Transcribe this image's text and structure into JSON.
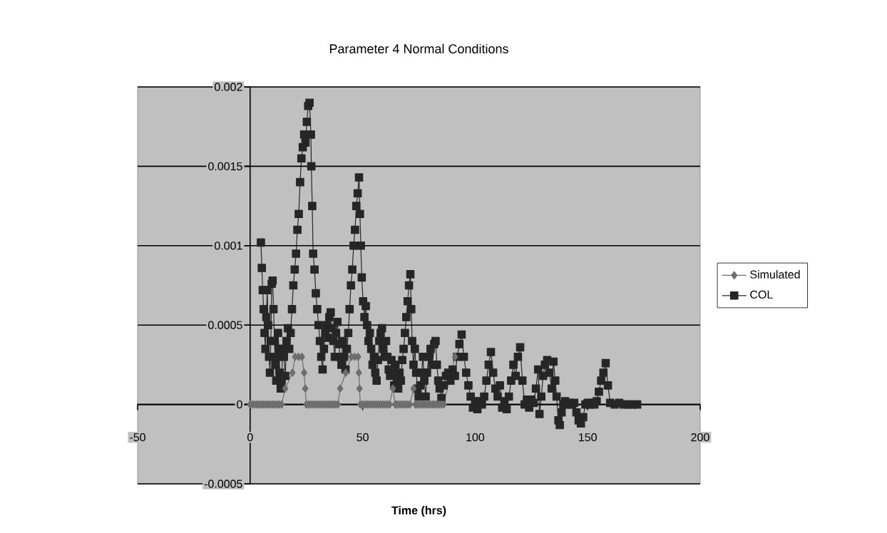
{
  "chart_data": {
    "type": "line",
    "title": "Parameter 4 Normal Conditions",
    "xlabel": "Time (hrs)",
    "xlim": [
      -50,
      200
    ],
    "xticks": [
      -50,
      0,
      50,
      100,
      150,
      200
    ],
    "ylim": [
      -0.0005,
      0.002
    ],
    "yticks": [
      -0.0005,
      0,
      0.0005,
      0.001,
      0.0015,
      0.002
    ],
    "grid": "y",
    "legend": "right",
    "line_style": "solid",
    "series": [
      {
        "name": "Simulated",
        "color": "#6e6e6e",
        "marker": "diamond",
        "x": [
          0,
          1,
          2,
          3,
          4,
          5,
          6,
          7,
          8,
          9,
          10,
          11,
          12,
          13,
          14,
          15.6,
          18.8,
          20,
          21.5,
          23,
          24,
          24.5,
          25,
          26,
          27,
          28,
          29,
          30,
          31,
          32,
          33,
          34,
          35,
          36,
          37,
          38,
          39,
          40,
          42.5,
          45,
          46.5,
          48,
          48.3,
          48.6,
          49,
          50,
          51,
          52,
          53,
          54,
          55,
          56,
          57,
          58,
          59,
          60,
          61,
          62,
          63.4,
          64.5,
          65,
          66,
          67,
          68,
          69,
          70,
          71,
          72.6,
          73.5,
          74,
          75,
          76,
          77,
          78,
          79,
          80,
          81,
          82,
          83,
          84,
          85,
          86,
          91
        ],
        "values": [
          0,
          0,
          0,
          0,
          0,
          0,
          0,
          0,
          0,
          0,
          0,
          0,
          0,
          0,
          0,
          0.0001,
          0.0002,
          0.0003,
          0.0003,
          0.0003,
          0.0002,
          0.0001,
          0,
          0,
          0,
          0,
          0,
          0,
          0,
          0,
          0,
          0,
          0,
          0,
          0,
          0,
          0,
          0.0001,
          0.0002,
          0.0003,
          0.0003,
          0.0003,
          0.0002,
          0.0001,
          0,
          0,
          0,
          0,
          0,
          0,
          0,
          0,
          0,
          0,
          0,
          0,
          0,
          0,
          0.0001,
          0,
          0,
          0,
          0,
          0,
          0,
          0,
          0,
          0.0001,
          0,
          0,
          0,
          0,
          0,
          0,
          0,
          0,
          0,
          0,
          0,
          0,
          0,
          0,
          0.0003
        ]
      },
      {
        "name": "COL",
        "color": "#262626",
        "marker": "square",
        "x": [
          4.8,
          5.2,
          5.6,
          6,
          6.4,
          6.8,
          7.2,
          7.6,
          8,
          8.4,
          8.8,
          9.2,
          9.6,
          10,
          10.4,
          10.8,
          11.2,
          11.6,
          12,
          12.4,
          12.8,
          13.2,
          13.6,
          14,
          14.4,
          15,
          15.6,
          16.2,
          16.8,
          17.4,
          18,
          18.6,
          19.2,
          19.8,
          20.4,
          21,
          21.6,
          22.2,
          22.8,
          23.4,
          24,
          24.6,
          25.2,
          25.8,
          26.4,
          27,
          27.2,
          27.6,
          28,
          28.6,
          29.2,
          29.8,
          30.4,
          31,
          31.6,
          32.2,
          32.8,
          33.4,
          34,
          34.6,
          35.2,
          35.8,
          36.4,
          37,
          37.6,
          38.2,
          38.8,
          39.4,
          40,
          40.6,
          41.2,
          41.8,
          42.4,
          43,
          43.6,
          44.2,
          44.8,
          45.4,
          46,
          46.6,
          47.2,
          47.8,
          48.4,
          48.8,
          49.2,
          49.6,
          50.2,
          50.8,
          51.4,
          52,
          52.6,
          53.2,
          53.8,
          54.4,
          55,
          55.6,
          56.2,
          56.8,
          57.4,
          58,
          58.6,
          59.2,
          59.8,
          60.4,
          61,
          61.6,
          62.2,
          62.8,
          63.4,
          64,
          64.6,
          65.2,
          65.8,
          66.4,
          67,
          67.6,
          68.2,
          68.8,
          69.4,
          70,
          70.6,
          71.2,
          71.6,
          72,
          72.6,
          73.2,
          73.8,
          74.4,
          75,
          75.6,
          76.2,
          76.8,
          77.4,
          78,
          78.6,
          79.4,
          80.2,
          81,
          81.8,
          82.4,
          83,
          83.6,
          84.2,
          85,
          86,
          87,
          88,
          89,
          90,
          91,
          92,
          93,
          94,
          95,
          96,
          97,
          98,
          99,
          100,
          101,
          102,
          103,
          104,
          105,
          106,
          107,
          108,
          109,
          110,
          111,
          112,
          113,
          114,
          115,
          116,
          117,
          118,
          119,
          120,
          121,
          122,
          123,
          124,
          125,
          126,
          127,
          128,
          128.6,
          129.4,
          130.2,
          131,
          132,
          133,
          134,
          134.8,
          135.6,
          136.2,
          137,
          137.6,
          138.4,
          139.2,
          140,
          141,
          142,
          143,
          144,
          145,
          146,
          147,
          148,
          149,
          150,
          151,
          152,
          153,
          154,
          155,
          156,
          157,
          158,
          159,
          160,
          162,
          164,
          166,
          168,
          170,
          172
        ],
        "values": [
          0.00102,
          0.00086,
          0.00072,
          0.0006,
          0.00045,
          0.00035,
          0.00055,
          0.00072,
          0.0005,
          0.0003,
          0.0002,
          0.0004,
          0.00076,
          0.00078,
          0.0006,
          0.0004,
          0.00025,
          0.00015,
          0.0003,
          0.00045,
          0.00035,
          0.0002,
          0.0001,
          0.00015,
          0.00035,
          0.0003,
          0.00018,
          0.0004,
          0.00048,
          0.00035,
          0.00045,
          0.0006,
          0.00075,
          0.00085,
          0.00095,
          0.0011,
          0.0012,
          0.0014,
          0.00155,
          0.00162,
          0.0017,
          0.00165,
          0.00178,
          0.00188,
          0.0019,
          0.0017,
          0.0015,
          0.00125,
          0.00095,
          0.00085,
          0.0007,
          0.0006,
          0.0005,
          0.0004,
          0.0003,
          0.00022,
          0.00035,
          0.00045,
          0.0005,
          0.00042,
          0.00055,
          0.00058,
          0.00048,
          0.0004,
          0.0003,
          0.00045,
          0.00052,
          0.00038,
          0.0003,
          0.00025,
          0.0004,
          0.0003,
          0.00022,
          0.00035,
          0.00045,
          0.0006,
          0.00075,
          0.00085,
          0.001,
          0.0011,
          0.00125,
          0.00133,
          0.00143,
          0.0012,
          0.001,
          0.0008,
          0.00065,
          0.00055,
          0.00062,
          0.0005,
          0.0004,
          0.00045,
          0.00035,
          0.00025,
          0.0003,
          0.0002,
          0.00015,
          0.00028,
          0.0004,
          0.00045,
          0.00048,
          0.00035,
          0.0003,
          0.0004,
          0.0003,
          0.00022,
          0.00018,
          0.00028,
          0.0002,
          0.00012,
          0.00025,
          0.00015,
          0.0001,
          0.0002,
          0.00015,
          0.00028,
          0.00035,
          0.00045,
          0.00055,
          0.00065,
          0.00075,
          0.00082,
          0.0006,
          0.0004,
          0.00025,
          0.00035,
          0.0002,
          0.0001,
          5e-05,
          0.00012,
          0.0002,
          0.0003,
          0.00015,
          5e-05,
          0.0002,
          0.0003,
          0.00035,
          0.00025,
          0.00038,
          0.0004,
          0.00025,
          0.00015,
          0.0001,
          4e-05,
          0.00012,
          0.00018,
          0.0002,
          0.00015,
          0.00022,
          0.00018,
          0.0003,
          0.00038,
          0.00044,
          0.0003,
          0.0002,
          0.00012,
          5e-05,
          -2e-05,
          2e-05,
          -3e-05,
          2e-05,
          0,
          5e-05,
          0.00015,
          0.00025,
          0.00033,
          0.0002,
          0.0001,
          5e-05,
          0.00012,
          -2e-05,
          2e-05,
          -3e-05,
          5e-05,
          0.00015,
          0.00025,
          0.00018,
          0.0003,
          0.00036,
          0.00015,
          0,
          3e-05,
          -2e-05,
          3e-05,
          1e-05,
          0.0001,
          0.00022,
          -6e-05,
          5e-05,
          0.00018,
          0.00025,
          0.00028,
          0.0002,
          0.0001,
          0.00027,
          0.00015,
          5e-05,
          -0.0001,
          -0.00013,
          -5e-05,
          0,
          2e-05,
          0,
          1e-05,
          0,
          1e-05,
          -5e-05,
          -0.0001,
          -0.00012,
          -8e-05,
          0,
          1e-05,
          0,
          1e-05,
          0,
          2e-05,
          8e-05,
          0.00015,
          0.0002,
          0.00026,
          0.00012,
          1e-05,
          0,
          1e-05,
          0,
          0,
          0,
          0
        ]
      }
    ]
  }
}
